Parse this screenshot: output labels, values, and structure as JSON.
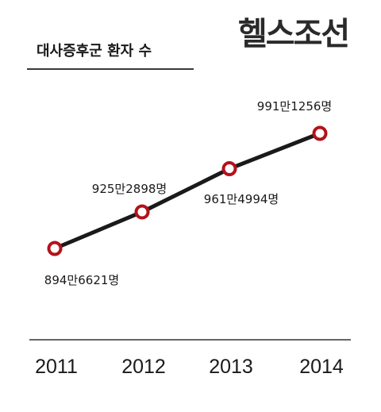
{
  "header": {
    "title": "대사증후군 환자 수",
    "brand": "헬스조선"
  },
  "colors": {
    "line": "#1a1a1a",
    "marker_stroke": "#b3121b",
    "marker_fill": "#ffffff",
    "axis": "#333333"
  },
  "chart_data": {
    "type": "line",
    "title": "대사증후군 환자 수",
    "xlabel": "",
    "ylabel": "",
    "categories": [
      "2011",
      "2012",
      "2013",
      "2014"
    ],
    "values": [
      8946621,
      9252898,
      9614994,
      9911256
    ],
    "data_labels": [
      "894만6621명",
      "925만2898명",
      "961만4994명",
      "991만1256명"
    ],
    "grid": false,
    "legend": "none"
  }
}
